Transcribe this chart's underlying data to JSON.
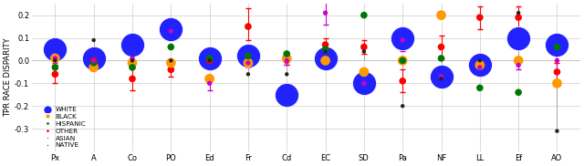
{
  "categories": [
    "Px",
    "A",
    "Co",
    "PO",
    "Ed",
    "Fr",
    "Cd",
    "EC",
    "SD",
    "Pa",
    "NF",
    "LL",
    "Ef",
    "AO"
  ],
  "ylabel": "TPR RACE DISPARITY",
  "ylim": [
    -0.4,
    0.25
  ],
  "yticks": [
    -0.3,
    -0.2,
    -0.1,
    0.0,
    0.1,
    0.2
  ],
  "colors": {
    "WHITE": "#2222ff",
    "BLACK": "#ff9900",
    "HISPANIC": "#007700",
    "OTHER": "#ff0000",
    "ASIAN": "#cc00cc",
    "NATIVE": "#222222"
  },
  "data": {
    "WHITE": [
      0.05,
      0.01,
      0.07,
      0.14,
      0.01,
      0.02,
      -0.15,
      0.01,
      -0.1,
      0.1,
      -0.07,
      -0.02,
      0.1,
      0.07
    ],
    "BLACK": [
      0.01,
      -0.03,
      -0.01,
      -0.01,
      -0.08,
      -0.01,
      0.01,
      0.0,
      -0.05,
      0.0,
      0.2,
      -0.02,
      0.0,
      -0.1
    ],
    "HISPANIC": [
      -0.03,
      -0.01,
      -0.03,
      0.06,
      0.01,
      0.02,
      0.03,
      0.05,
      0.2,
      0.0,
      0.01,
      -0.12,
      -0.14,
      0.06
    ],
    "OTHER": [
      -0.06,
      0.0,
      -0.08,
      -0.04,
      0.0,
      0.15,
      0.0,
      0.07,
      0.06,
      -0.09,
      0.06,
      0.19,
      0.19,
      -0.05
    ],
    "ASIAN": [
      0.01,
      0.0,
      0.01,
      0.13,
      -0.1,
      -0.01,
      0.0,
      0.21,
      -0.1,
      0.09,
      -0.07,
      -0.03,
      -0.02,
      0.0
    ],
    "NATIVE": [
      0.0,
      0.09,
      0.0,
      0.0,
      0.0,
      -0.06,
      -0.06,
      0.04,
      0.04,
      -0.2,
      -0.08,
      0.0,
      0.21,
      -0.31
    ]
  },
  "white_errorbars": [
    [
      0.03,
      0.03
    ],
    [
      0.025,
      0.025
    ],
    [
      0.03,
      0.03
    ],
    [
      0.02,
      0.02
    ],
    [
      0.02,
      0.02
    ],
    [
      0.03,
      0.03
    ],
    [
      0.04,
      0.04
    ],
    [
      0.02,
      0.02
    ],
    [
      0.025,
      0.025
    ],
    [
      0.025,
      0.025
    ],
    [
      0.03,
      0.03
    ],
    [
      0.03,
      0.03
    ],
    [
      0.025,
      0.025
    ],
    [
      0.02,
      0.02
    ]
  ],
  "other_errorbars": [
    [
      0.04,
      0.04
    ],
    [
      0.02,
      0.02
    ],
    [
      0.05,
      0.05
    ],
    [
      0.03,
      0.03
    ],
    [
      0.02,
      0.02
    ],
    [
      0.06,
      0.08
    ],
    [
      0.02,
      0.02
    ],
    [
      0.03,
      0.03
    ],
    [
      0.03,
      0.03
    ],
    [
      0.05,
      0.05
    ],
    [
      0.05,
      0.05
    ],
    [
      0.05,
      0.05
    ],
    [
      0.05,
      0.05
    ],
    [
      0.04,
      0.04
    ]
  ],
  "asian_errorbars": [
    [
      0.02,
      0.02
    ],
    [
      0.01,
      0.01
    ],
    [
      0.02,
      0.02
    ],
    [
      0.02,
      0.02
    ],
    [
      0.03,
      0.03
    ],
    [
      0.02,
      0.02
    ],
    [
      0.02,
      0.02
    ],
    [
      0.05,
      0.05
    ],
    [
      0.04,
      0.04
    ],
    [
      0.05,
      0.05
    ],
    [
      0.04,
      0.04
    ],
    [
      0.02,
      0.02
    ],
    [
      0.02,
      0.02
    ],
    [
      0.05,
      0.05
    ]
  ],
  "background_color": "#ffffff"
}
